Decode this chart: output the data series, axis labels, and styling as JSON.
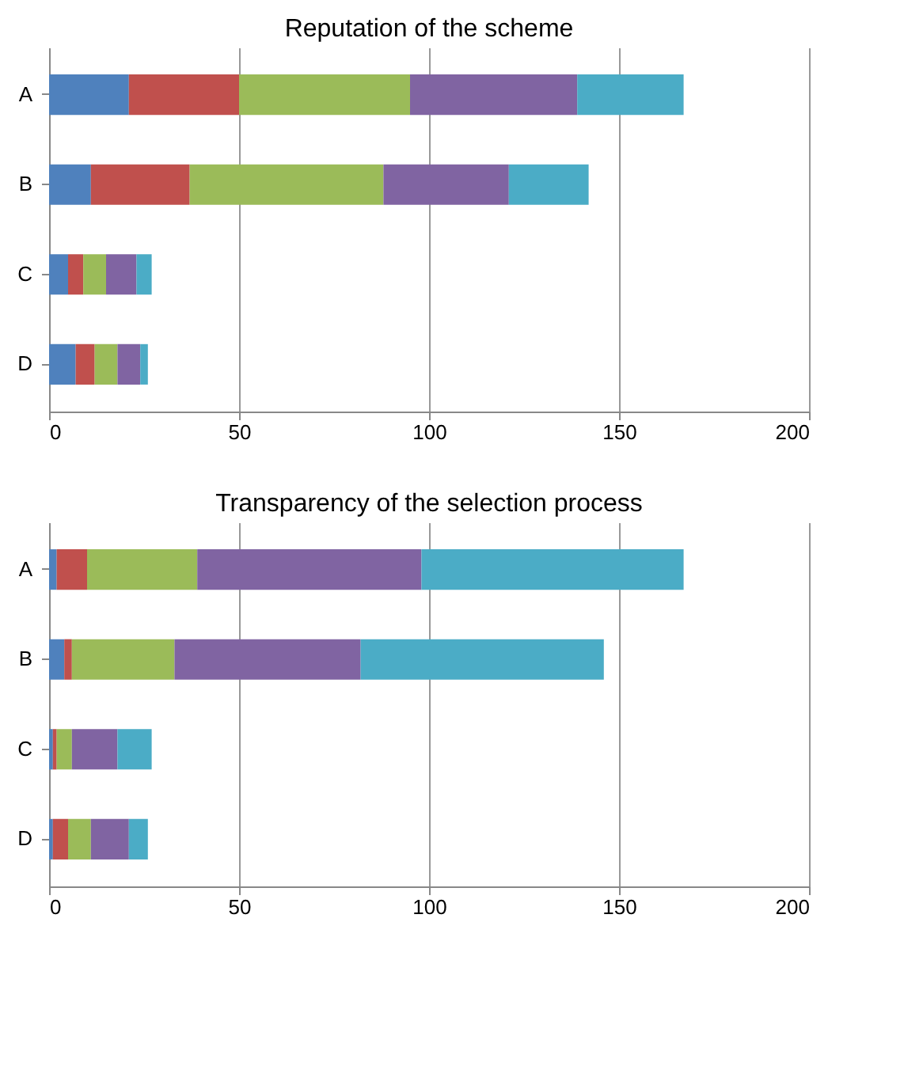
{
  "chart_data": [
    {
      "type": "bar",
      "orientation": "horizontal",
      "stacked": true,
      "title": "Reputation of the scheme",
      "categories": [
        "A",
        "B",
        "C",
        "D"
      ],
      "xlim": [
        0,
        200
      ],
      "xticks": [
        0,
        50,
        100,
        150,
        200
      ],
      "grid": "x",
      "series": [
        {
          "color": "#4f81bd",
          "values": [
            21,
            11,
            5,
            7
          ]
        },
        {
          "color": "#c0504d",
          "values": [
            29,
            26,
            4,
            5
          ]
        },
        {
          "color": "#9bbb59",
          "values": [
            45,
            51,
            6,
            6
          ]
        },
        {
          "color": "#8064a2",
          "values": [
            44,
            33,
            8,
            6
          ]
        },
        {
          "color": "#4bacc6",
          "values": [
            28,
            21,
            4,
            2
          ]
        }
      ]
    },
    {
      "type": "bar",
      "orientation": "horizontal",
      "stacked": true,
      "title": "Transparency of the selection process",
      "categories": [
        "A",
        "B",
        "C",
        "D"
      ],
      "xlim": [
        0,
        200
      ],
      "xticks": [
        0,
        50,
        100,
        150,
        200
      ],
      "grid": "x",
      "series": [
        {
          "color": "#4f81bd",
          "values": [
            2,
            4,
            1,
            1
          ]
        },
        {
          "color": "#c0504d",
          "values": [
            8,
            2,
            1,
            4
          ]
        },
        {
          "color": "#9bbb59",
          "values": [
            29,
            27,
            4,
            6
          ]
        },
        {
          "color": "#8064a2",
          "values": [
            59,
            49,
            12,
            10
          ]
        },
        {
          "color": "#4bacc6",
          "values": [
            69,
            64,
            9,
            5
          ]
        }
      ]
    }
  ]
}
